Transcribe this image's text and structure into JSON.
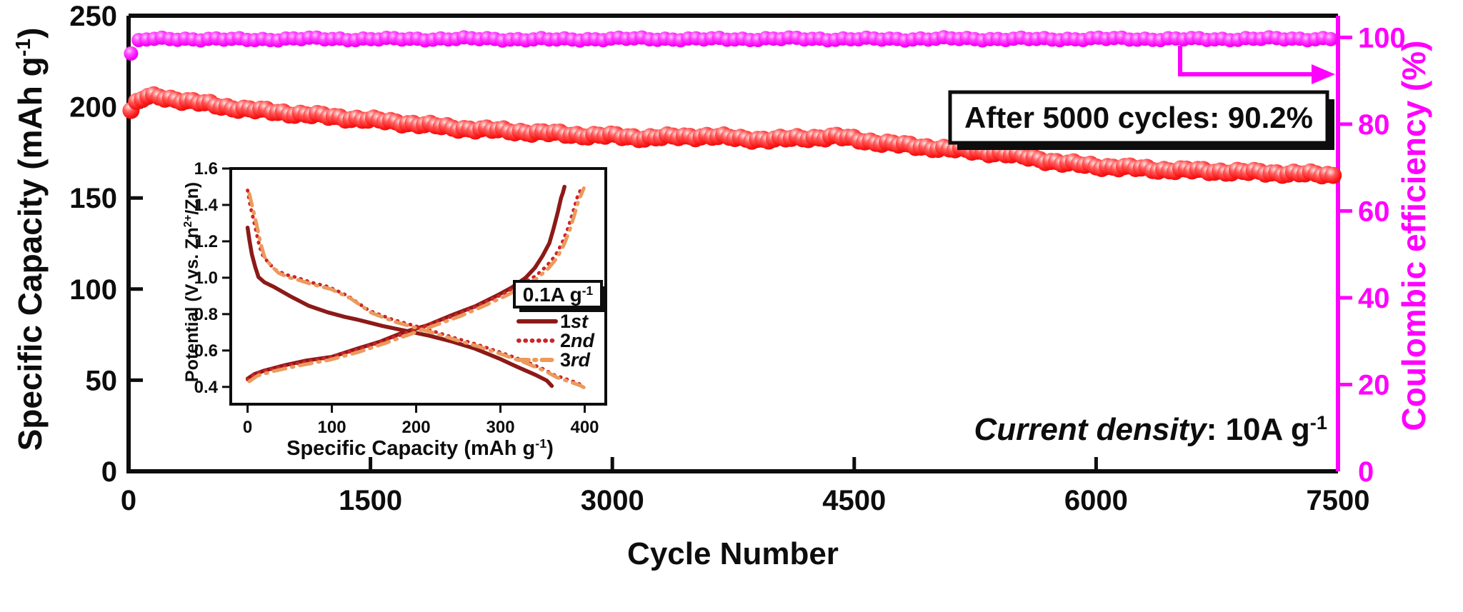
{
  "chart_data": {
    "type": "scatter",
    "title": "",
    "x_axis": {
      "label": "Cycle Number",
      "range": [
        0,
        7500
      ],
      "ticks": [
        0,
        1500,
        3000,
        4500,
        6000,
        7500
      ]
    },
    "y_left": {
      "label_pre": "Specific Capacity (mAh g",
      "label_sup": "-1",
      "label_post": ")",
      "range": [
        0,
        250
      ],
      "ticks": [
        0,
        50,
        100,
        150,
        200,
        250
      ],
      "color": "#0d0d0d"
    },
    "y_right": {
      "label": "Coulombic efficiency (%)",
      "range": [
        0,
        105
      ],
      "ticks": [
        0,
        20,
        40,
        60,
        80,
        100
      ],
      "color": "#ff00ff"
    },
    "grid": false,
    "series": [
      {
        "id": "cap",
        "name": "Specific Capacity",
        "axis": "left",
        "marker": "sphere",
        "color": "#fa1616",
        "radius": 12,
        "step": 35,
        "jitter": 1.1,
        "anchors": [
          [
            15,
            198
          ],
          [
            60,
            203
          ],
          [
            120,
            205.5
          ],
          [
            200,
            205.5
          ],
          [
            300,
            204
          ],
          [
            450,
            202
          ],
          [
            600,
            200
          ],
          [
            800,
            198
          ],
          [
            1000,
            196.5
          ],
          [
            1200,
            195
          ],
          [
            1400,
            193.5
          ],
          [
            1600,
            192
          ],
          [
            1800,
            190.5
          ],
          [
            2000,
            188.5
          ],
          [
            2200,
            187.5
          ],
          [
            2400,
            186.5
          ],
          [
            2600,
            185.5
          ],
          [
            2800,
            184.5
          ],
          [
            3000,
            184
          ],
          [
            3200,
            183
          ],
          [
            3400,
            183.5
          ],
          [
            3600,
            184
          ],
          [
            3800,
            182.5
          ],
          [
            4000,
            182
          ],
          [
            4200,
            183
          ],
          [
            4400,
            183.5
          ],
          [
            4600,
            181
          ],
          [
            4800,
            179
          ],
          [
            5000,
            177.5
          ],
          [
            5200,
            176
          ],
          [
            5400,
            174.5
          ],
          [
            5600,
            172
          ],
          [
            5800,
            169
          ],
          [
            6000,
            167.5
          ],
          [
            6200,
            166.5
          ],
          [
            6400,
            165.5
          ],
          [
            6600,
            165
          ],
          [
            6800,
            164.5
          ],
          [
            7000,
            164
          ],
          [
            7200,
            163.5
          ],
          [
            7480,
            162.5
          ]
        ]
      },
      {
        "id": "ce",
        "name": "Coulombic efficiency",
        "axis": "right",
        "marker": "sphere",
        "color": "#f505f5",
        "radius": 10,
        "step": 48,
        "jitter": 0.3,
        "anchors": [
          [
            15,
            96.3
          ],
          [
            50,
            99.0
          ],
          [
            120,
            99.6
          ],
          [
            300,
            99.7
          ],
          [
            700,
            99.5
          ],
          [
            1100,
            99.7
          ],
          [
            1600,
            99.6
          ],
          [
            2100,
            99.7
          ],
          [
            2600,
            99.5
          ],
          [
            3100,
            99.7
          ],
          [
            3600,
            99.6
          ],
          [
            4100,
            99.7
          ],
          [
            4600,
            99.6
          ],
          [
            5100,
            99.7
          ],
          [
            5600,
            99.6
          ],
          [
            6100,
            99.7
          ],
          [
            6600,
            99.6
          ],
          [
            7100,
            99.7
          ],
          [
            7480,
            99.7
          ]
        ]
      }
    ],
    "annotation": {
      "text": "After 5000 cycles: 90.2%",
      "color": "#e8150f"
    },
    "note": {
      "italic": "Current density",
      "rest_pre": ": 10A g",
      "rest_sup": "-1"
    },
    "inset": {
      "x_axis": {
        "label_pre": "Specific Capacity (mAh g",
        "label_sup": "-1",
        "label_post": ")",
        "range": [
          -20,
          425
        ],
        "ticks": [
          0,
          100,
          200,
          300,
          400
        ]
      },
      "y_axis": {
        "label_pre": "Potential (V vs. Zn",
        "label_sup": "2+",
        "label_post": "/Zn)",
        "range": [
          0.305,
          1.6
        ],
        "ticks": [
          0.4,
          0.6,
          0.8,
          1.0,
          1.2,
          1.4,
          1.6
        ]
      },
      "legend": {
        "rate_pre": "0.1A g",
        "rate_sup": "-1",
        "items": [
          {
            "num": "1",
            "suf": "st",
            "color": "#8c1a18",
            "style": "solid"
          },
          {
            "num": "2",
            "suf": "nd",
            "color": "#cc2428",
            "style": "dotted"
          },
          {
            "num": "3",
            "suf": "rd",
            "color": "#ec9a5c",
            "style": "dashdot"
          }
        ]
      },
      "curves": [
        {
          "name": "charge-1st",
          "color": "#8c1a18",
          "style": "solid",
          "points": [
            [
              0,
              0.445
            ],
            [
              8,
              0.47
            ],
            [
              20,
              0.49
            ],
            [
              45,
              0.52
            ],
            [
              70,
              0.545
            ],
            [
              100,
              0.565
            ],
            [
              130,
              0.61
            ],
            [
              158,
              0.65
            ],
            [
              185,
              0.7
            ],
            [
              214,
              0.74
            ],
            [
              240,
              0.79
            ],
            [
              271,
              0.845
            ],
            [
              295,
              0.9
            ],
            [
              313,
              0.945
            ],
            [
              330,
              1.0
            ],
            [
              341,
              1.055
            ],
            [
              350,
              1.12
            ],
            [
              358,
              1.19
            ],
            [
              363,
              1.27
            ],
            [
              368,
              1.36
            ],
            [
              372,
              1.44
            ],
            [
              374,
              1.465
            ],
            [
              376,
              1.5
            ]
          ]
        },
        {
          "name": "discharge-1st",
          "color": "#8c1a18",
          "style": "solid",
          "points": [
            [
              0,
              1.275
            ],
            [
              2,
              1.21
            ],
            [
              5,
              1.13
            ],
            [
              9,
              1.06
            ],
            [
              13,
              1.003
            ],
            [
              20,
              0.975
            ],
            [
              31,
              0.95
            ],
            [
              50,
              0.9
            ],
            [
              73,
              0.845
            ],
            [
              95,
              0.81
            ],
            [
              115,
              0.785
            ],
            [
              130,
              0.77
            ],
            [
              160,
              0.735
            ],
            [
              186,
              0.71
            ],
            [
              215,
              0.682
            ],
            [
              242,
              0.65
            ],
            [
              270,
              0.61
            ],
            [
              299,
              0.555
            ],
            [
              320,
              0.51
            ],
            [
              342,
              0.465
            ],
            [
              355,
              0.435
            ],
            [
              361,
              0.405
            ]
          ]
        },
        {
          "name": "charge-2nd",
          "color": "#cc2428",
          "style": "dotted",
          "points": [
            [
              0,
              0.44
            ],
            [
              10,
              0.475
            ],
            [
              30,
              0.5
            ],
            [
              60,
              0.53
            ],
            [
              95,
              0.56
            ],
            [
              130,
              0.605
            ],
            [
              160,
              0.65
            ],
            [
              190,
              0.7
            ],
            [
              220,
              0.75
            ],
            [
              250,
              0.8
            ],
            [
              280,
              0.86
            ],
            [
              305,
              0.915
            ],
            [
              325,
              0.965
            ],
            [
              342,
              1.01
            ],
            [
              355,
              1.065
            ],
            [
              365,
              1.12
            ],
            [
              373,
              1.19
            ],
            [
              380,
              1.27
            ],
            [
              386,
              1.36
            ],
            [
              391,
              1.44
            ],
            [
              394,
              1.47
            ],
            [
              397,
              1.505
            ]
          ]
        },
        {
          "name": "discharge-2nd",
          "color": "#cc2428",
          "style": "dotted",
          "points": [
            [
              0,
              1.48
            ],
            [
              3,
              1.4
            ],
            [
              8,
              1.3
            ],
            [
              13,
              1.195
            ],
            [
              17,
              1.13
            ],
            [
              25,
              1.08
            ],
            [
              34,
              1.04
            ],
            [
              47,
              1.015
            ],
            [
              59,
              1.0
            ],
            [
              75,
              0.975
            ],
            [
              96,
              0.95
            ],
            [
              119,
              0.9
            ],
            [
              144,
              0.82
            ],
            [
              172,
              0.77
            ],
            [
              214,
              0.715
            ],
            [
              245,
              0.67
            ],
            [
              271,
              0.635
            ],
            [
              300,
              0.59
            ],
            [
              327,
              0.545
            ],
            [
              350,
              0.5
            ],
            [
              364,
              0.465
            ],
            [
              380,
              0.44
            ],
            [
              392,
              0.42
            ],
            [
              398,
              0.405
            ]
          ]
        },
        {
          "name": "charge-3rd",
          "color": "#ec9a5c",
          "style": "dashdot",
          "points": [
            [
              2,
              0.43
            ],
            [
              12,
              0.462
            ],
            [
              32,
              0.488
            ],
            [
              62,
              0.518
            ],
            [
              97,
              0.548
            ],
            [
              132,
              0.592
            ],
            [
              162,
              0.638
            ],
            [
              192,
              0.688
            ],
            [
              222,
              0.738
            ],
            [
              252,
              0.788
            ],
            [
              282,
              0.848
            ],
            [
              307,
              0.902
            ],
            [
              327,
              0.952
            ],
            [
              344,
              0.998
            ],
            [
              357,
              1.052
            ],
            [
              367,
              1.108
            ],
            [
              375,
              1.178
            ],
            [
              382,
              1.258
            ],
            [
              388,
              1.348
            ],
            [
              393,
              1.428
            ],
            [
              396,
              1.458
            ],
            [
              399,
              1.492
            ]
          ]
        },
        {
          "name": "discharge-3rd",
          "color": "#ec9a5c",
          "style": "dashdot",
          "points": [
            [
              2,
              1.462
            ],
            [
              6,
              1.385
            ],
            [
              11,
              1.285
            ],
            [
              16,
              1.18
            ],
            [
              20,
              1.115
            ],
            [
              28,
              1.065
            ],
            [
              37,
              1.025
            ],
            [
              50,
              1.0
            ],
            [
              62,
              0.985
            ],
            [
              78,
              0.962
            ],
            [
              99,
              0.937
            ],
            [
              122,
              0.887
            ],
            [
              147,
              0.807
            ],
            [
              175,
              0.757
            ],
            [
              217,
              0.702
            ],
            [
              248,
              0.657
            ],
            [
              274,
              0.622
            ],
            [
              303,
              0.577
            ],
            [
              330,
              0.532
            ],
            [
              353,
              0.487
            ],
            [
              367,
              0.452
            ],
            [
              383,
              0.427
            ],
            [
              395,
              0.407
            ],
            [
              401,
              0.392
            ]
          ]
        }
      ]
    }
  }
}
